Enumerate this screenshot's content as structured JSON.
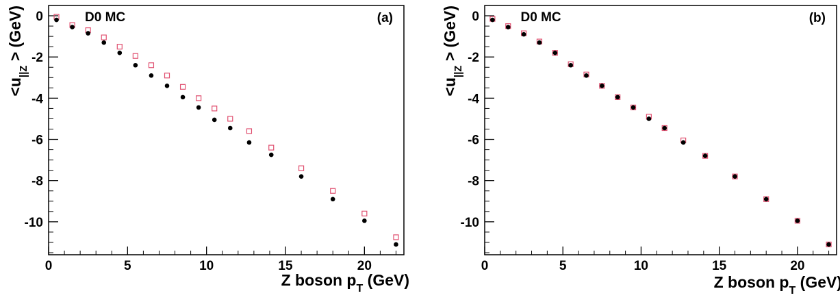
{
  "chart_data": [
    {
      "type": "scatter",
      "panel_label": "(a)",
      "annotation": "D0 MC",
      "xlabel_main": "Z boson p",
      "xlabel_sub": "T",
      "xlabel_unit": "(GeV)",
      "ylabel_prefix": "<u",
      "ylabel_sub": "||Z",
      "ylabel_suffix": "> (GeV)",
      "xlim": [
        0,
        22.5
      ],
      "ylim": [
        -11.6,
        0.5
      ],
      "xticks": [
        0,
        5,
        10,
        15,
        20
      ],
      "xtick_labels": [
        "0",
        "5",
        "10",
        "15",
        "20"
      ],
      "yticks": [
        0,
        -2,
        -4,
        -6,
        -8,
        -10
      ],
      "ytick_labels": [
        "0",
        "-2",
        "-4",
        "-6",
        "-8",
        "-10"
      ],
      "grid": false,
      "series": [
        {
          "marker": "filled-circle",
          "color": "#000000",
          "x": [
            0.5,
            1.5,
            2.5,
            3.5,
            4.5,
            5.5,
            6.5,
            7.5,
            8.5,
            9.5,
            10.5,
            11.5,
            12.7,
            14.1,
            16.0,
            18.0,
            20.0,
            22.0
          ],
          "y": [
            -0.2,
            -0.55,
            -0.85,
            -1.3,
            -1.8,
            -2.4,
            -2.9,
            -3.4,
            -3.95,
            -4.45,
            -5.05,
            -5.45,
            -6.15,
            -6.75,
            -7.8,
            -8.9,
            -9.95,
            -11.1
          ]
        },
        {
          "marker": "open-square",
          "color": "#e05070",
          "x": [
            0.5,
            1.5,
            2.5,
            3.5,
            4.5,
            5.5,
            6.5,
            7.5,
            8.5,
            9.5,
            10.5,
            11.5,
            12.7,
            14.1,
            16.0,
            18.0,
            20.0,
            22.0
          ],
          "y": [
            -0.05,
            -0.45,
            -0.7,
            -1.05,
            -1.5,
            -1.95,
            -2.4,
            -2.9,
            -3.45,
            -4.0,
            -4.5,
            -5.0,
            -5.6,
            -6.4,
            -7.4,
            -8.5,
            -9.6,
            -10.75
          ]
        }
      ]
    },
    {
      "type": "scatter",
      "panel_label": "(b)",
      "annotation": "D0 MC",
      "xlabel_main": "Z boson p",
      "xlabel_sub": "T",
      "xlabel_unit": "(GeV)",
      "ylabel_prefix": "<u",
      "ylabel_sub": "||Z",
      "ylabel_suffix": "> (GeV)",
      "xlim": [
        0,
        22.5
      ],
      "ylim": [
        -11.6,
        0.5
      ],
      "xticks": [
        0,
        5,
        10,
        15,
        20
      ],
      "xtick_labels": [
        "0",
        "5",
        "10",
        "15",
        "20"
      ],
      "yticks": [
        0,
        -2,
        -4,
        -6,
        -8,
        -10
      ],
      "ytick_labels": [
        "0",
        "-2",
        "-4",
        "-6",
        "-8",
        "-10"
      ],
      "grid": false,
      "series": [
        {
          "marker": "filled-circle",
          "color": "#000000",
          "x": [
            0.5,
            1.5,
            2.5,
            3.5,
            4.5,
            5.5,
            6.5,
            7.5,
            8.5,
            9.5,
            10.5,
            11.5,
            12.7,
            14.1,
            16.0,
            18.0,
            20.0,
            22.0
          ],
          "y": [
            -0.2,
            -0.55,
            -0.9,
            -1.3,
            -1.8,
            -2.4,
            -2.9,
            -3.4,
            -3.95,
            -4.45,
            -5.0,
            -5.45,
            -6.15,
            -6.8,
            -7.8,
            -8.9,
            -9.95,
            -11.1
          ]
        },
        {
          "marker": "open-square",
          "color": "#e05070",
          "x": [
            0.5,
            1.5,
            2.5,
            3.5,
            4.5,
            5.5,
            6.5,
            7.5,
            8.5,
            9.5,
            10.5,
            11.5,
            12.7,
            14.1,
            16.0,
            18.0,
            20.0,
            22.0
          ],
          "y": [
            -0.15,
            -0.5,
            -0.85,
            -1.25,
            -1.8,
            -2.35,
            -2.85,
            -3.4,
            -3.95,
            -4.45,
            -4.9,
            -5.45,
            -6.05,
            -6.8,
            -7.8,
            -8.9,
            -9.95,
            -11.1
          ]
        }
      ]
    }
  ]
}
